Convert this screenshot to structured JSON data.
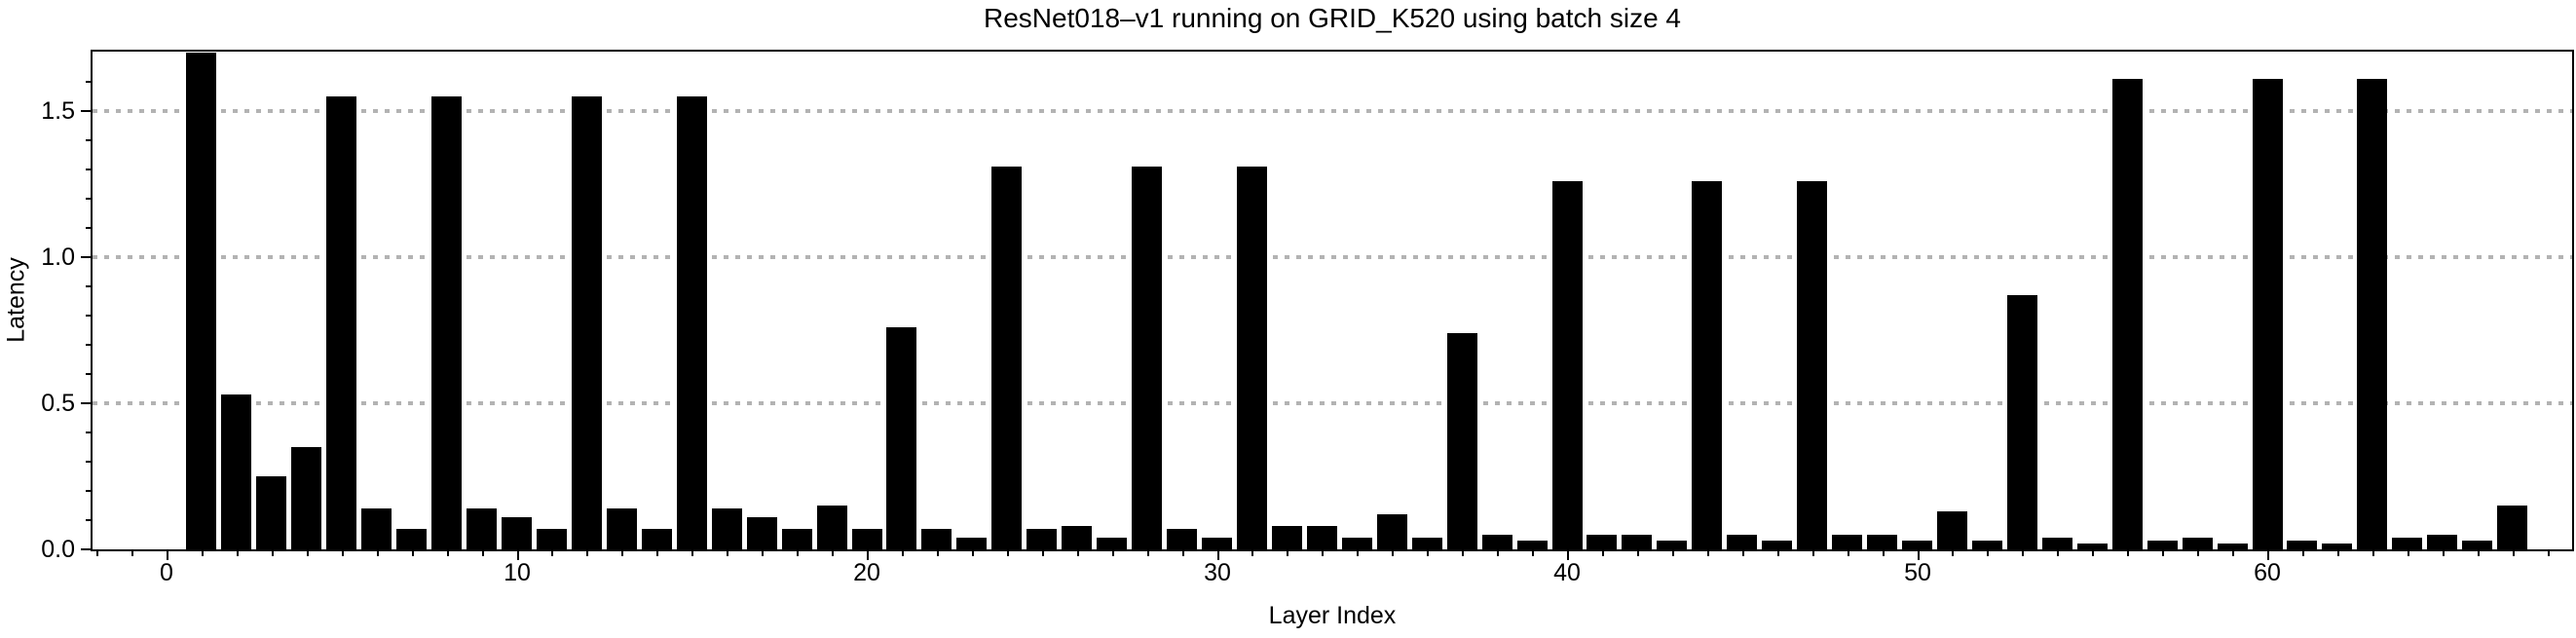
{
  "title": "ResNet018–v1 running on GRID_K520 using batch size 4",
  "axis": {
    "x_label": "Layer Index",
    "y_label": "Latency"
  },
  "chart_data": {
    "type": "bar",
    "title": "ResNet018–v1 running on GRID_K520 using batch size 4",
    "xlabel": "Layer Index",
    "ylabel": "Latency",
    "x_start_index": 1,
    "categories_note": "bars are layer indices 1..67",
    "values": [
      1.7,
      0.53,
      0.25,
      0.35,
      1.55,
      0.14,
      0.07,
      1.55,
      0.14,
      0.11,
      0.07,
      1.55,
      0.14,
      0.07,
      1.55,
      0.14,
      0.11,
      0.07,
      0.15,
      0.07,
      0.76,
      0.07,
      0.04,
      1.31,
      0.07,
      0.08,
      0.04,
      1.31,
      0.07,
      0.04,
      1.31,
      0.08,
      0.08,
      0.04,
      0.12,
      0.04,
      0.74,
      0.05,
      0.03,
      1.26,
      0.05,
      0.05,
      0.03,
      1.26,
      0.05,
      0.03,
      1.26,
      0.05,
      0.05,
      0.03,
      0.13,
      0.03,
      0.87,
      0.04,
      0.02,
      1.61,
      0.03,
      0.04,
      0.02,
      1.61,
      0.03,
      0.02,
      1.61,
      0.04,
      0.05,
      0.03,
      0.15
    ],
    "x_tick_values": [
      0,
      10,
      20,
      30,
      40,
      50,
      60
    ],
    "x_tick_labels": [
      "0",
      "10",
      "20",
      "30",
      "40",
      "50",
      "60"
    ],
    "x_minor_tick_step": 1,
    "x_minor_tick_range": [
      -2,
      68
    ],
    "y_tick_values": [
      0,
      0.5,
      1.0,
      1.5
    ],
    "y_tick_labels": [
      "0.0",
      "0.5",
      "1.0",
      "1.5"
    ],
    "y_minor_tick_step": 0.1,
    "ylim": [
      0,
      1.703
    ],
    "xlim": [
      -2.1,
      68.8
    ],
    "gridline_values": [
      0.5,
      1.0,
      1.5
    ],
    "grid_style": "horizontal dotted",
    "legend": "none",
    "bar_color": "#000000",
    "grid_color": "#b3b3b3",
    "frame_color": "#000000",
    "background": "#ffffff"
  }
}
